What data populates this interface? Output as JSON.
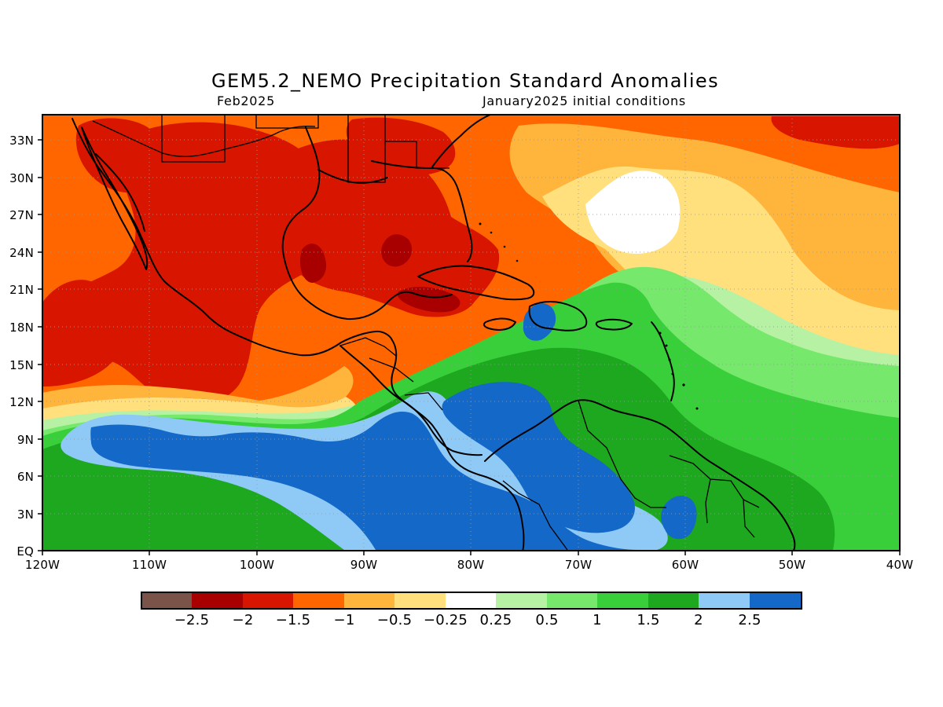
{
  "figure": {
    "title": "GEM5.2_NEMO Precipitation Standard Anomalies",
    "subtitle_left": "Feb2025",
    "subtitle_right": "January2025 initial conditions"
  },
  "map": {
    "projection": "lat-lon",
    "lon_range": [
      -120,
      -40
    ],
    "lat_range": [
      0,
      35
    ],
    "x_ticks": [
      "120W",
      "110W",
      "100W",
      "90W",
      "80W",
      "70W",
      "60W",
      "50W",
      "40W"
    ],
    "y_ticks": [
      "EQ",
      "3N",
      "6N",
      "9N",
      "12N",
      "15N",
      "18N",
      "21N",
      "24N",
      "27N",
      "30N",
      "33N"
    ],
    "grid": "dotted",
    "coastlines": true,
    "field_summary": {
      "dry_anomalies": [
        "Mexico",
        "Gulf of Mexico",
        "Southeastern United States",
        "Western Atlantic",
        "Eastern Pacific north of 12N"
      ],
      "wet_anomalies": [
        "Eastern tropical Pacific 3N–12N",
        "Central America",
        "Caribbean Sea",
        "Northern South America"
      ],
      "strongest_wet": "Eastern Pacific near 6N–9N, 80W–90W and Caribbean near 70W",
      "strongest_dry": "Gulf of Mexico near 24N and Mexico near 21N"
    }
  },
  "colorbar": {
    "ticks": [
      "−2.5",
      "−2",
      "−1.5",
      "−1",
      "−0.5",
      "−0.25",
      "0.25",
      "0.5",
      "1",
      "1.5",
      "2",
      "2.5"
    ],
    "colors": [
      "#7b5449",
      "#a80000",
      "#d81600",
      "#ff6600",
      "#ffb43c",
      "#ffe07d",
      "#ffffff",
      "#b7f2a4",
      "#76e86b",
      "#39cf3b",
      "#1ea81f",
      "#8fcaf6",
      "#1468c8"
    ]
  },
  "colors": {
    "coastline": "#000000",
    "grid": "#9a9a9a",
    "background": "#ffffff"
  }
}
